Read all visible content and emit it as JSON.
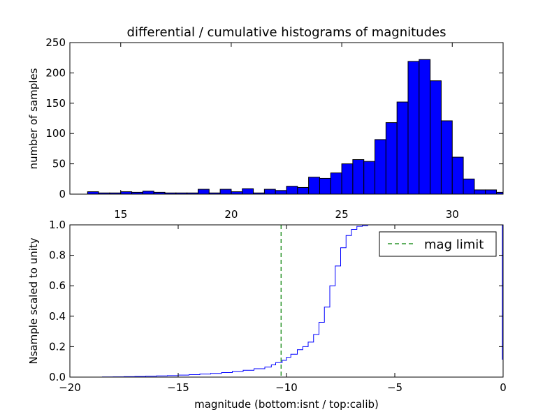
{
  "chart_data": [
    {
      "type": "bar",
      "title": "differential / cumulative histograms of magnitudes",
      "xlabel": "",
      "ylabel": "number of samples",
      "xlim": [
        12.7,
        32.3
      ],
      "ylim": [
        0,
        250
      ],
      "xticks": [
        15,
        20,
        25,
        30
      ],
      "yticks": [
        0,
        50,
        100,
        150,
        200,
        250
      ],
      "bin_width": 0.5,
      "bars": [
        {
          "x": 12.7,
          "value": 0
        },
        {
          "x": 13.5,
          "value": 4
        },
        {
          "x": 14.0,
          "value": 2
        },
        {
          "x": 14.5,
          "value": 2
        },
        {
          "x": 15.0,
          "value": 4
        },
        {
          "x": 15.5,
          "value": 3
        },
        {
          "x": 16.0,
          "value": 5
        },
        {
          "x": 16.5,
          "value": 3
        },
        {
          "x": 17.0,
          "value": 2
        },
        {
          "x": 17.5,
          "value": 2
        },
        {
          "x": 18.0,
          "value": 2
        },
        {
          "x": 18.5,
          "value": 8
        },
        {
          "x": 19.0,
          "value": 2
        },
        {
          "x": 19.5,
          "value": 8
        },
        {
          "x": 20.0,
          "value": 4
        },
        {
          "x": 20.5,
          "value": 9
        },
        {
          "x": 21.0,
          "value": 2
        },
        {
          "x": 21.5,
          "value": 8
        },
        {
          "x": 22.0,
          "value": 6
        },
        {
          "x": 22.5,
          "value": 13
        },
        {
          "x": 23.0,
          "value": 11
        },
        {
          "x": 23.5,
          "value": 28
        },
        {
          "x": 24.0,
          "value": 26
        },
        {
          "x": 24.5,
          "value": 35
        },
        {
          "x": 25.0,
          "value": 50
        },
        {
          "x": 25.5,
          "value": 57
        },
        {
          "x": 26.0,
          "value": 54
        },
        {
          "x": 26.5,
          "value": 90
        },
        {
          "x": 27.0,
          "value": 118
        },
        {
          "x": 27.5,
          "value": 152
        },
        {
          "x": 28.0,
          "value": 219
        },
        {
          "x": 28.5,
          "value": 222
        },
        {
          "x": 29.0,
          "value": 187
        },
        {
          "x": 29.5,
          "value": 121
        },
        {
          "x": 30.0,
          "value": 61
        },
        {
          "x": 30.5,
          "value": 25
        },
        {
          "x": 31.0,
          "value": 7
        },
        {
          "x": 31.5,
          "value": 7
        },
        {
          "x": 32.0,
          "value": 3
        }
      ]
    },
    {
      "type": "line",
      "title": "",
      "xlabel": "magnitude (bottom:isnt / top:calib)",
      "ylabel": "Nsample scaled to unity",
      "xlim": [
        -20,
        0
      ],
      "ylim": [
        0.0,
        1.0
      ],
      "xticks": [
        -20,
        -15,
        -10,
        -5,
        0
      ],
      "yticks": [
        0.0,
        0.2,
        0.4,
        0.6,
        0.8,
        1.0
      ],
      "series": [
        {
          "name": "",
          "step": true,
          "x": [
            -20,
            -19.5,
            -19,
            -18.5,
            -18,
            -17.5,
            -17,
            -16.5,
            -16,
            -15.5,
            -15,
            -14.5,
            -14,
            -13.5,
            -13,
            -12.5,
            -12,
            -11.5,
            -11,
            -10.7,
            -10.5,
            -10.2,
            -10.0,
            -9.8,
            -9.5,
            -9.25,
            -9.0,
            -8.75,
            -8.5,
            -8.25,
            -8.0,
            -7.75,
            -7.5,
            -7.25,
            -7.0,
            -6.75,
            -6.5,
            -6.25,
            -6.0,
            -0.05
          ],
          "y": [
            0.0,
            0.0,
            0.0,
            0.001,
            0.002,
            0.003,
            0.004,
            0.006,
            0.008,
            0.01,
            0.013,
            0.016,
            0.02,
            0.024,
            0.03,
            0.037,
            0.045,
            0.055,
            0.066,
            0.08,
            0.095,
            0.11,
            0.13,
            0.15,
            0.18,
            0.2,
            0.23,
            0.28,
            0.36,
            0.46,
            0.6,
            0.73,
            0.85,
            0.93,
            0.97,
            0.99,
            0.995,
            1.0,
            1.0,
            1.0
          ]
        }
      ],
      "reference_lines": [
        {
          "name": "mag limit",
          "x": -10.25,
          "style": "dashed",
          "color": "#007f00"
        }
      ],
      "legend": {
        "placement": "top-right",
        "entries": [
          "mag limit"
        ]
      }
    }
  ]
}
